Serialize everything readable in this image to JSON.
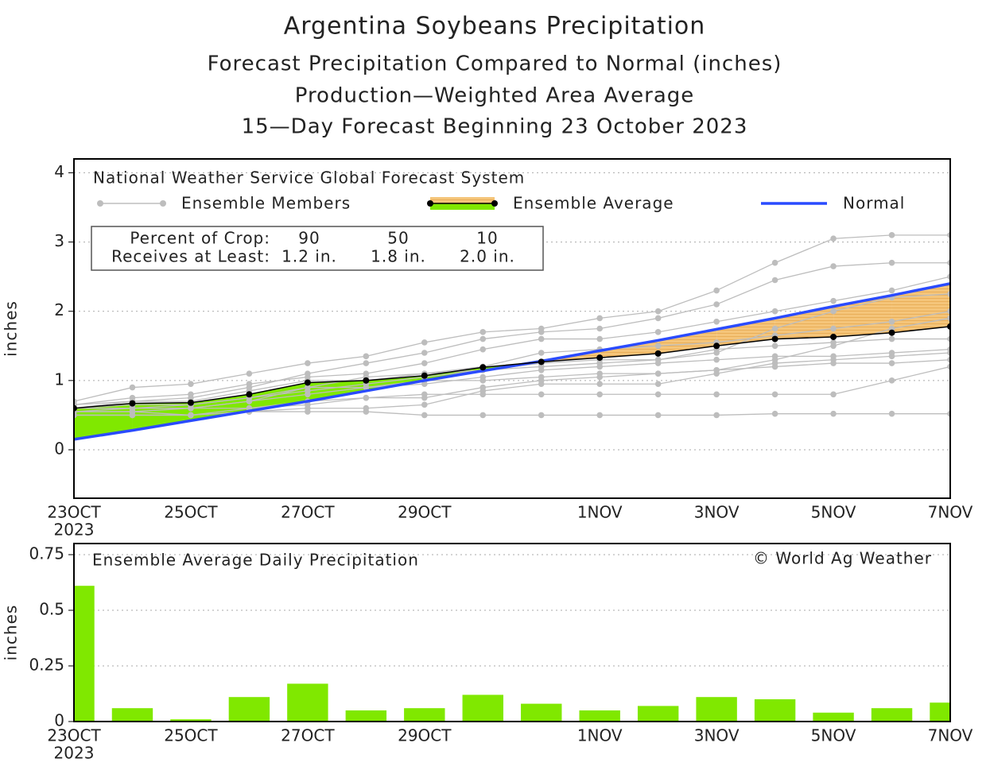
{
  "header": {
    "title": "Argentina Soybeans Precipitation",
    "subtitles": [
      "Forecast Precipitation Compared to Normal (inches)",
      "Production—Weighted Area Average",
      "15—Day Forecast Beginning 23 October 2023"
    ]
  },
  "chart_data": [
    {
      "type": "line",
      "source": "National Weather Service Global Forecast System",
      "ylabel": "inches",
      "categories": [
        "23OCT",
        null,
        "25OCT",
        null,
        "27OCT",
        null,
        "29OCT",
        null,
        null,
        "1NOV",
        null,
        "3NOV",
        null,
        "5NOV",
        null,
        "7NOV"
      ],
      "year_label": "2023",
      "ylim": [
        -0.7,
        4.2
      ],
      "yticks": [
        0,
        1,
        2,
        3,
        4
      ],
      "grid": true,
      "members": {
        "name": "Ensemble Members",
        "color": "#bdbdbd",
        "values": [
          [
            0.5,
            0.5,
            0.5,
            0.55,
            0.55,
            0.55,
            0.5,
            0.5,
            0.5,
            0.5,
            0.5,
            0.5,
            0.52,
            0.52,
            0.52,
            0.52
          ],
          [
            0.7,
            0.9,
            0.95,
            1.1,
            1.25,
            1.35,
            1.55,
            1.7,
            1.75,
            1.9,
            2.0,
            2.3,
            2.7,
            3.05,
            3.1,
            3.1
          ],
          [
            0.6,
            0.7,
            0.75,
            0.9,
            1.1,
            1.25,
            1.4,
            1.6,
            1.7,
            1.75,
            1.9,
            2.1,
            2.45,
            2.65,
            2.7,
            2.7
          ],
          [
            0.55,
            0.55,
            0.5,
            0.6,
            0.7,
            0.75,
            0.8,
            0.8,
            0.8,
            0.8,
            0.8,
            0.8,
            0.8,
            0.8,
            1.0,
            1.2
          ],
          [
            0.65,
            0.75,
            0.8,
            0.95,
            1.05,
            1.1,
            1.25,
            1.45,
            1.6,
            1.6,
            1.7,
            1.85,
            2.0,
            2.15,
            2.3,
            2.5
          ],
          [
            0.6,
            0.6,
            0.6,
            0.7,
            0.8,
            0.9,
            0.95,
            1.05,
            1.15,
            1.2,
            1.25,
            1.3,
            1.35,
            1.35,
            1.4,
            1.45
          ],
          [
            0.65,
            0.7,
            0.7,
            0.85,
            1.0,
            1.0,
            1.1,
            1.2,
            1.4,
            1.45,
            1.5,
            1.55,
            1.65,
            1.75,
            1.85,
            2.0
          ],
          [
            0.5,
            0.5,
            0.5,
            0.55,
            0.6,
            0.6,
            0.65,
            0.85,
            0.95,
            0.95,
            0.95,
            1.1,
            1.25,
            1.3,
            1.35,
            1.4
          ],
          [
            0.6,
            0.65,
            0.65,
            0.75,
            0.85,
            0.95,
            1.05,
            1.15,
            1.25,
            1.3,
            1.3,
            1.45,
            1.5,
            1.55,
            1.6,
            1.6
          ],
          [
            0.55,
            0.6,
            0.6,
            0.7,
            0.9,
            1.05,
            1.1,
            1.15,
            1.2,
            1.25,
            1.3,
            1.4,
            1.75,
            2.0,
            2.2,
            2.25
          ],
          [
            0.6,
            0.6,
            0.65,
            0.75,
            0.9,
            0.9,
            1.0,
            1.0,
            1.05,
            1.1,
            1.1,
            1.15,
            1.2,
            1.25,
            1.25,
            1.3
          ],
          [
            0.55,
            0.55,
            0.6,
            0.6,
            0.65,
            0.75,
            0.75,
            0.9,
            1.0,
            1.05,
            1.1,
            1.15,
            1.3,
            1.5,
            1.75,
            1.9
          ]
        ]
      },
      "series": [
        {
          "name": "Ensemble Average",
          "color": "#000000",
          "above_color": "#80e800",
          "below_color": "#f5c57a",
          "values": [
            0.6,
            0.67,
            0.68,
            0.8,
            0.97,
            1.0,
            1.07,
            1.19,
            1.27,
            1.33,
            1.39,
            1.5,
            1.6,
            1.63,
            1.69,
            1.78
          ]
        },
        {
          "name": "Normal",
          "color": "#2a4bff",
          "values": [
            0.15,
            0.28,
            0.42,
            0.56,
            0.7,
            0.85,
            1.0,
            1.14,
            1.28,
            1.43,
            1.58,
            1.74,
            1.9,
            2.07,
            2.23,
            2.4
          ]
        }
      ],
      "crop_table": {
        "rows": [
          [
            "Percent of Crop:",
            "90",
            "50",
            "10"
          ],
          [
            "Receives at Least:",
            "1.2 in.",
            "1.8 in.",
            "2.0 in."
          ]
        ]
      }
    },
    {
      "type": "bar",
      "title": "Ensemble Average Daily Precipitation",
      "credit": "© World Ag Weather",
      "ylabel": "inches",
      "categories": [
        "23OCT",
        null,
        "25OCT",
        null,
        "27OCT",
        null,
        "29OCT",
        null,
        null,
        "1NOV",
        null,
        "3NOV",
        null,
        "5NOV",
        null,
        "7NOV"
      ],
      "year_label": "2023",
      "ylim": [
        0,
        0.8
      ],
      "yticks": [
        0,
        0.25,
        0.5,
        0.75
      ],
      "grid": true,
      "color": "#80e800",
      "values": [
        0.61,
        0.06,
        0.01,
        0.11,
        0.17,
        0.05,
        0.06,
        0.12,
        0.08,
        0.05,
        0.07,
        0.11,
        0.1,
        0.04,
        0.06,
        0.085
      ]
    }
  ]
}
